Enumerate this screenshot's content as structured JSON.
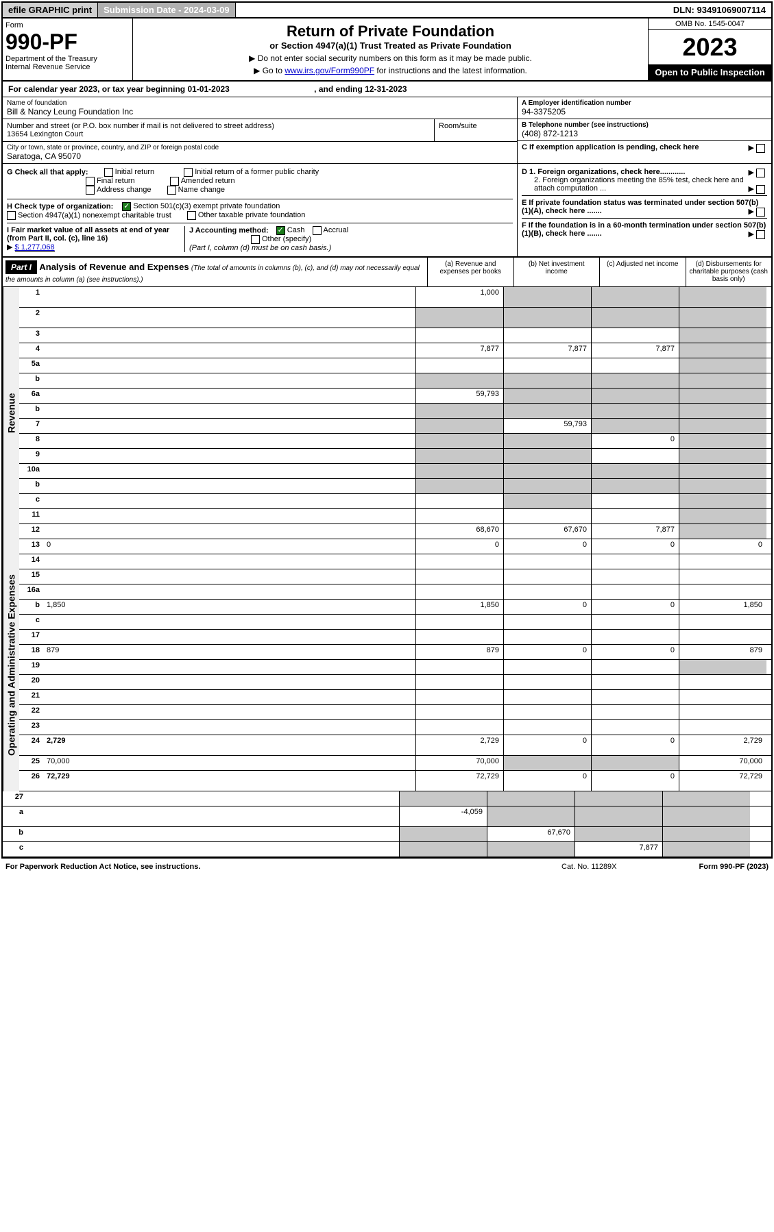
{
  "topbar": {
    "efile": "efile GRAPHIC print",
    "subdate": "Submission Date - 2024-03-09",
    "dln": "DLN: 93491069007114"
  },
  "header": {
    "form": "Form",
    "number": "990-PF",
    "dept": "Department of the Treasury",
    "irs": "Internal Revenue Service",
    "title": "Return of Private Foundation",
    "subtitle": "or Section 4947(a)(1) Trust Treated as Private Foundation",
    "note1": "▶ Do not enter social security numbers on this form as it may be made public.",
    "note2_pre": "▶ Go to ",
    "note2_link": "www.irs.gov/Form990PF",
    "note2_post": " for instructions and the latest information.",
    "omb": "OMB No. 1545-0047",
    "year": "2023",
    "open": "Open to Public Inspection"
  },
  "calyear": {
    "pre": "For calendar year 2023, or tax year beginning ",
    "begin": "01-01-2023",
    "mid": " , and ending ",
    "end": "12-31-2023"
  },
  "info": {
    "name_lbl": "Name of foundation",
    "name": "Bill & Nancy Leung Foundation Inc",
    "addr_lbl": "Number and street (or P.O. box number if mail is not delivered to street address)",
    "addr": "13654 Lexington Court",
    "room_lbl": "Room/suite",
    "city_lbl": "City or town, state or province, country, and ZIP or foreign postal code",
    "city": "Saratoga, CA  95070",
    "ein_lbl": "A Employer identification number",
    "ein": "94-3375205",
    "tel_lbl": "B Telephone number (see instructions)",
    "tel": "(408) 872-1213",
    "c_lbl": "C If exemption application is pending, check here"
  },
  "checks": {
    "g_lbl": "G Check all that apply:",
    "g_opts": [
      "Initial return",
      "Final return",
      "Address change",
      "Initial return of a former public charity",
      "Amended return",
      "Name change"
    ],
    "h_lbl": "H Check type of organization:",
    "h1": "Section 501(c)(3) exempt private foundation",
    "h2": "Section 4947(a)(1) nonexempt charitable trust",
    "h3": "Other taxable private foundation",
    "i_lbl": "I Fair market value of all assets at end of year (from Part II, col. (c), line 16)",
    "i_val": "$  1,277,068",
    "j_lbl": "J Accounting method:",
    "j1": "Cash",
    "j2": "Accrual",
    "j3": "Other (specify)",
    "j_note": "(Part I, column (d) must be on cash basis.)",
    "d1": "D 1. Foreign organizations, check here............",
    "d2": "2. Foreign organizations meeting the 85% test, check here and attach computation ...",
    "e": "E  If private foundation status was terminated under section 507(b)(1)(A), check here .......",
    "f": "F  If the foundation is in a 60-month termination under section 507(b)(1)(B), check here ......."
  },
  "part1": {
    "label": "Part I",
    "title": "Analysis of Revenue and Expenses",
    "note": "(The total of amounts in columns (b), (c), and (d) may not necessarily equal the amounts in column (a) (see instructions).)",
    "col_a": "(a)   Revenue and expenses per books",
    "col_b": "(b)   Net investment income",
    "col_c": "(c)   Adjusted net income",
    "col_d": "(d)   Disbursements for charitable purposes (cash basis only)"
  },
  "side_labels": {
    "rev": "Revenue",
    "exp": "Operating and Administrative Expenses"
  },
  "rows": [
    {
      "n": "1",
      "d": "",
      "a": "1,000",
      "b": "",
      "c": "",
      "sb": true,
      "sc": true,
      "sd": true,
      "tall": true
    },
    {
      "n": "2",
      "d": "",
      "a": "",
      "b": "",
      "c": "",
      "sa": true,
      "sb": true,
      "sc": true,
      "sd": true,
      "tall": true
    },
    {
      "n": "3",
      "d": "",
      "a": "",
      "b": "",
      "c": "",
      "sd": true
    },
    {
      "n": "4",
      "d": "",
      "a": "7,877",
      "b": "7,877",
      "c": "7,877",
      "sd": true
    },
    {
      "n": "5a",
      "d": "",
      "a": "",
      "b": "",
      "c": "",
      "sd": true
    },
    {
      "n": "b",
      "d": "",
      "a": "",
      "b": "",
      "c": "",
      "sa": true,
      "sb": true,
      "sc": true,
      "sd": true
    },
    {
      "n": "6a",
      "d": "",
      "a": "59,793",
      "b": "",
      "c": "",
      "sb": true,
      "sc": true,
      "sd": true
    },
    {
      "n": "b",
      "d": "",
      "a": "",
      "b": "",
      "c": "",
      "sa": true,
      "sb": true,
      "sc": true,
      "sd": true
    },
    {
      "n": "7",
      "d": "",
      "a": "",
      "b": "59,793",
      "c": "",
      "sa": true,
      "sc": true,
      "sd": true
    },
    {
      "n": "8",
      "d": "",
      "a": "",
      "b": "",
      "c": "0",
      "sa": true,
      "sb": true,
      "sd": true
    },
    {
      "n": "9",
      "d": "",
      "a": "",
      "b": "",
      "c": "",
      "sa": true,
      "sb": true,
      "sd": true
    },
    {
      "n": "10a",
      "d": "",
      "a": "",
      "b": "",
      "c": "",
      "sa": true,
      "sb": true,
      "sc": true,
      "sd": true
    },
    {
      "n": "b",
      "d": "",
      "a": "",
      "b": "",
      "c": "",
      "sa": true,
      "sb": true,
      "sc": true,
      "sd": true
    },
    {
      "n": "c",
      "d": "",
      "a": "",
      "b": "",
      "c": "",
      "sb": true,
      "sd": true
    },
    {
      "n": "11",
      "d": "",
      "a": "",
      "b": "",
      "c": "",
      "sd": true
    },
    {
      "n": "12",
      "d": "",
      "a": "68,670",
      "b": "67,670",
      "c": "7,877",
      "sd": true,
      "bold": true
    },
    {
      "n": "13",
      "d": "0",
      "a": "0",
      "b": "0",
      "c": "0"
    },
    {
      "n": "14",
      "d": "",
      "a": "",
      "b": "",
      "c": ""
    },
    {
      "n": "15",
      "d": "",
      "a": "",
      "b": "",
      "c": ""
    },
    {
      "n": "16a",
      "d": "",
      "a": "",
      "b": "",
      "c": ""
    },
    {
      "n": "b",
      "d": "1,850",
      "a": "1,850",
      "b": "0",
      "c": "0"
    },
    {
      "n": "c",
      "d": "",
      "a": "",
      "b": "",
      "c": ""
    },
    {
      "n": "17",
      "d": "",
      "a": "",
      "b": "",
      "c": ""
    },
    {
      "n": "18",
      "d": "879",
      "a": "879",
      "b": "0",
      "c": "0"
    },
    {
      "n": "19",
      "d": "",
      "a": "",
      "b": "",
      "c": "",
      "sd": true
    },
    {
      "n": "20",
      "d": "",
      "a": "",
      "b": "",
      "c": ""
    },
    {
      "n": "21",
      "d": "",
      "a": "",
      "b": "",
      "c": ""
    },
    {
      "n": "22",
      "d": "",
      "a": "",
      "b": "",
      "c": ""
    },
    {
      "n": "23",
      "d": "",
      "a": "",
      "b": "",
      "c": ""
    },
    {
      "n": "24",
      "d": "2,729",
      "a": "2,729",
      "b": "0",
      "c": "0",
      "bold": true,
      "tall": true
    },
    {
      "n": "25",
      "d": "70,000",
      "a": "70,000",
      "b": "",
      "c": "",
      "sb": true,
      "sc": true
    },
    {
      "n": "26",
      "d": "72,729",
      "a": "72,729",
      "b": "0",
      "c": "0",
      "bold": true,
      "tall": true
    },
    {
      "n": "27",
      "d": "",
      "a": "",
      "b": "",
      "c": "",
      "sa": true,
      "sb": true,
      "sc": true,
      "sd": true
    },
    {
      "n": "a",
      "d": "",
      "a": "-4,059",
      "b": "",
      "c": "",
      "sb": true,
      "sc": true,
      "sd": true,
      "bold": true,
      "tall": true
    },
    {
      "n": "b",
      "d": "",
      "a": "",
      "b": "67,670",
      "c": "",
      "sa": true,
      "sc": true,
      "sd": true,
      "bold": true
    },
    {
      "n": "c",
      "d": "",
      "a": "",
      "b": "",
      "c": "7,877",
      "sa": true,
      "sb": true,
      "sd": true,
      "bold": true
    }
  ],
  "footer": {
    "l": "For Paperwork Reduction Act Notice, see instructions.",
    "c": "Cat. No. 11289X",
    "r": "Form 990-PF (2023)"
  }
}
